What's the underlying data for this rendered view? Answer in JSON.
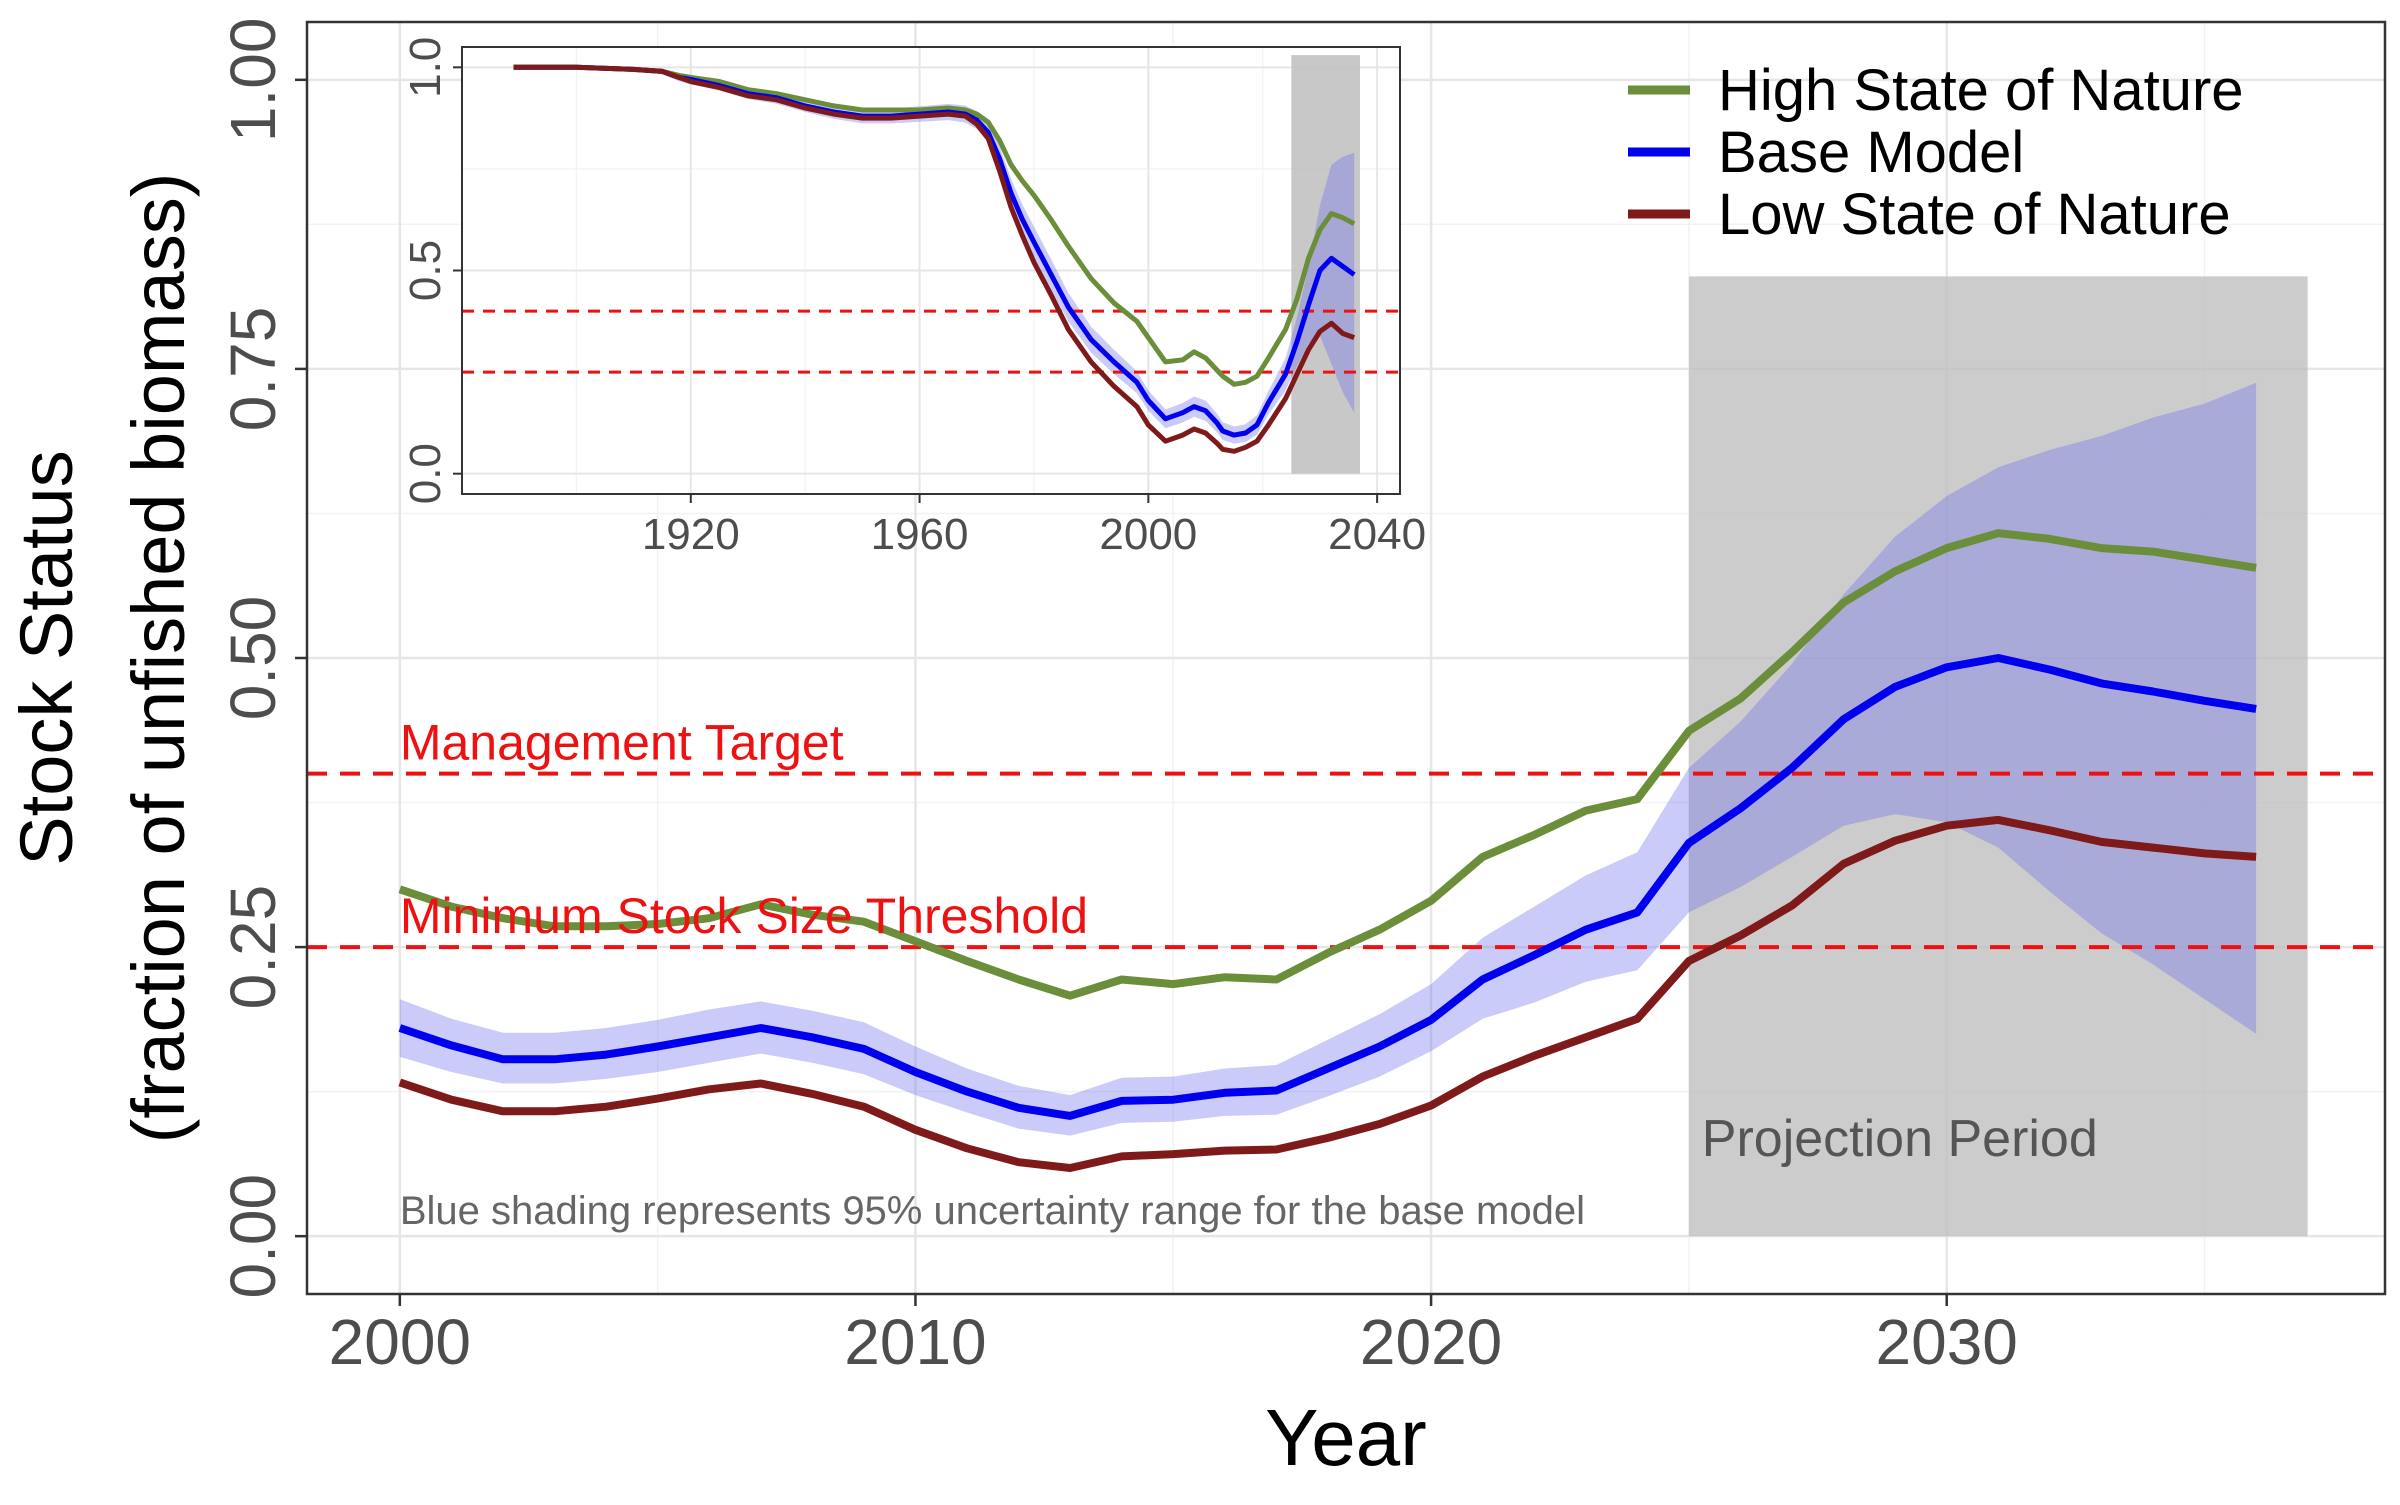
{
  "chart_data": [
    {
      "type": "line",
      "xlabel": "Year",
      "ylabel_line1": "Stock Status",
      "ylabel_line2": "(fraction of unfished biomass)",
      "xlim": [
        1998.2,
        2038.5
      ],
      "ylim": [
        -0.05,
        1.05
      ],
      "x_ticks": [
        2000,
        2010,
        2020,
        2030
      ],
      "x_tick_labels": [
        "2000",
        "2010",
        "2020",
        "2030"
      ],
      "y_ticks": [
        0.0,
        0.25,
        0.5,
        0.75,
        1.0
      ],
      "y_tick_labels": [
        "0.00",
        "0.25",
        "0.50",
        "0.75",
        "1.00"
      ],
      "grid": true,
      "legend_position": "top-right",
      "colors": {
        "high": "#6B8E3A",
        "base": "#0000EE",
        "low": "#7F1A1A",
        "band": "#6B6BF0",
        "reference": "#EE1111",
        "projection": "#BEBEBE"
      },
      "x": [
        2000,
        2001,
        2002,
        2003,
        2004,
        2005,
        2006,
        2007,
        2008,
        2009,
        2010,
        2011,
        2012,
        2013,
        2014,
        2015,
        2016,
        2017,
        2018,
        2019,
        2020,
        2021,
        2022,
        2023,
        2024,
        2025,
        2026,
        2027,
        2028,
        2029,
        2030,
        2031,
        2032,
        2033,
        2034,
        2035,
        2036
      ],
      "series": [
        {
          "name": "High State of Nature",
          "key": "high",
          "values": [
            0.3,
            0.285,
            0.275,
            0.268,
            0.268,
            0.27,
            0.275,
            0.287,
            0.278,
            0.272,
            0.255,
            0.238,
            0.222,
            0.208,
            0.222,
            0.218,
            0.224,
            0.222,
            0.245,
            0.265,
            0.29,
            0.328,
            0.347,
            0.368,
            0.378,
            0.437,
            0.465,
            0.505,
            0.548,
            0.575,
            0.595,
            0.608,
            0.603,
            0.595,
            0.592,
            0.585,
            0.578
          ]
        },
        {
          "name": "Base Model",
          "key": "base",
          "values": [
            0.18,
            0.165,
            0.153,
            0.153,
            0.157,
            0.164,
            0.172,
            0.18,
            0.172,
            0.162,
            0.142,
            0.125,
            0.111,
            0.104,
            0.117,
            0.118,
            0.124,
            0.126,
            0.145,
            0.164,
            0.187,
            0.222,
            0.243,
            0.265,
            0.28,
            0.34,
            0.37,
            0.405,
            0.447,
            0.475,
            0.492,
            0.5,
            0.49,
            0.478,
            0.471,
            0.463,
            0.456
          ]
        },
        {
          "name": "Low State of Nature",
          "key": "low",
          "values": [
            0.133,
            0.118,
            0.108,
            0.108,
            0.112,
            0.119,
            0.127,
            0.132,
            0.123,
            0.112,
            0.092,
            0.076,
            0.064,
            0.059,
            0.069,
            0.071,
            0.074,
            0.075,
            0.085,
            0.097,
            0.113,
            0.138,
            0.156,
            0.172,
            0.188,
            0.238,
            0.26,
            0.286,
            0.322,
            0.342,
            0.355,
            0.36,
            0.351,
            0.341,
            0.336,
            0.331,
            0.328
          ]
        }
      ],
      "base_band": {
        "lower": [
          0.155,
          0.142,
          0.132,
          0.132,
          0.136,
          0.142,
          0.15,
          0.158,
          0.15,
          0.14,
          0.122,
          0.107,
          0.093,
          0.087,
          0.098,
          0.099,
          0.104,
          0.105,
          0.121,
          0.138,
          0.16,
          0.188,
          0.202,
          0.22,
          0.23,
          0.28,
          0.302,
          0.328,
          0.355,
          0.365,
          0.358,
          0.336,
          0.298,
          0.262,
          0.235,
          0.205,
          0.175
        ],
        "upper": [
          0.205,
          0.188,
          0.176,
          0.176,
          0.18,
          0.187,
          0.196,
          0.203,
          0.195,
          0.185,
          0.164,
          0.145,
          0.13,
          0.122,
          0.137,
          0.138,
          0.145,
          0.148,
          0.17,
          0.192,
          0.218,
          0.258,
          0.285,
          0.312,
          0.332,
          0.405,
          0.445,
          0.495,
          0.555,
          0.605,
          0.64,
          0.665,
          0.68,
          0.692,
          0.708,
          0.72,
          0.738
        ]
      },
      "reference_lines": [
        {
          "value": 0.4,
          "label": "Management Target"
        },
        {
          "value": 0.25,
          "label": "Minimum Stock Size Threshold"
        }
      ],
      "projection_period": {
        "x_start": 2025,
        "x_end": 2037,
        "y_top": 0.83,
        "label": "Projection Period"
      },
      "annotation": "Blue shading represents 95% uncertainty range for the base model"
    },
    {
      "type": "line",
      "role": "inset",
      "xlim": [
        1880,
        2044
      ],
      "ylim": [
        -0.05,
        1.05
      ],
      "x_ticks": [
        1920,
        1960,
        2000,
        2040
      ],
      "x_tick_labels": [
        "1920",
        "1960",
        "2000",
        "2040"
      ],
      "y_ticks": [
        0.0,
        0.5,
        1.0
      ],
      "y_tick_labels": [
        "0.0",
        "0.5",
        "1.0"
      ],
      "grid": true,
      "x": [
        1889,
        1900,
        1910,
        1915,
        1918,
        1920,
        1925,
        1930,
        1935,
        1940,
        1945,
        1950,
        1955,
        1960,
        1965,
        1968,
        1970,
        1972,
        1974,
        1976,
        1978,
        1980,
        1983,
        1986,
        1990,
        1994,
        1998,
        2000,
        2003,
        2006,
        2008,
        2010,
        2012,
        2013,
        2015,
        2017,
        2019,
        2021,
        2024,
        2026,
        2028,
        2030,
        2032,
        2034,
        2036
      ],
      "series": [
        {
          "key": "high",
          "values": [
            1.0,
            1.0,
            0.995,
            0.99,
            0.98,
            0.975,
            0.965,
            0.945,
            0.935,
            0.92,
            0.905,
            0.895,
            0.895,
            0.895,
            0.9,
            0.895,
            0.885,
            0.865,
            0.82,
            0.76,
            0.72,
            0.685,
            0.625,
            0.56,
            0.48,
            0.42,
            0.375,
            0.335,
            0.275,
            0.28,
            0.3,
            0.285,
            0.255,
            0.24,
            0.22,
            0.225,
            0.24,
            0.285,
            0.355,
            0.43,
            0.53,
            0.6,
            0.64,
            0.63,
            0.615
          ]
        },
        {
          "key": "base",
          "values": [
            1.0,
            1.0,
            0.995,
            0.99,
            0.975,
            0.97,
            0.955,
            0.935,
            0.925,
            0.905,
            0.89,
            0.88,
            0.88,
            0.885,
            0.89,
            0.885,
            0.87,
            0.84,
            0.775,
            0.69,
            0.625,
            0.57,
            0.49,
            0.41,
            0.33,
            0.275,
            0.225,
            0.18,
            0.135,
            0.15,
            0.165,
            0.155,
            0.125,
            0.105,
            0.095,
            0.1,
            0.12,
            0.175,
            0.245,
            0.325,
            0.415,
            0.5,
            0.53,
            0.51,
            0.49
          ]
        },
        {
          "key": "low",
          "values": [
            1.0,
            1.0,
            0.995,
            0.99,
            0.975,
            0.965,
            0.95,
            0.93,
            0.92,
            0.9,
            0.885,
            0.875,
            0.875,
            0.88,
            0.885,
            0.88,
            0.86,
            0.825,
            0.745,
            0.655,
            0.585,
            0.52,
            0.44,
            0.355,
            0.275,
            0.215,
            0.165,
            0.12,
            0.08,
            0.095,
            0.11,
            0.1,
            0.075,
            0.06,
            0.055,
            0.065,
            0.08,
            0.12,
            0.185,
            0.245,
            0.305,
            0.35,
            0.37,
            0.345,
            0.335
          ]
        }
      ],
      "base_band": {
        "lower": [
          1.0,
          1.0,
          0.99,
          0.983,
          0.965,
          0.958,
          0.943,
          0.922,
          0.91,
          0.89,
          0.873,
          0.862,
          0.862,
          0.866,
          0.87,
          0.864,
          0.848,
          0.815,
          0.745,
          0.655,
          0.588,
          0.532,
          0.452,
          0.375,
          0.298,
          0.245,
          0.198,
          0.155,
          0.112,
          0.126,
          0.14,
          0.13,
          0.102,
          0.083,
          0.074,
          0.078,
          0.096,
          0.146,
          0.205,
          0.265,
          0.32,
          0.34,
          0.27,
          0.2,
          0.15
        ],
        "upper": [
          1.0,
          1.0,
          1.0,
          0.997,
          0.985,
          0.982,
          0.967,
          0.948,
          0.94,
          0.92,
          0.907,
          0.898,
          0.898,
          0.904,
          0.91,
          0.906,
          0.892,
          0.865,
          0.805,
          0.725,
          0.662,
          0.608,
          0.528,
          0.445,
          0.362,
          0.305,
          0.252,
          0.205,
          0.158,
          0.174,
          0.19,
          0.18,
          0.148,
          0.127,
          0.116,
          0.122,
          0.144,
          0.204,
          0.285,
          0.385,
          0.51,
          0.66,
          0.76,
          0.78,
          0.79
        ]
      },
      "reference_lines": [
        {
          "value": 0.4
        },
        {
          "value": 0.25
        }
      ],
      "projection_period": {
        "x_start": 2025,
        "x_end": 2037,
        "y_top": 1.03
      }
    }
  ]
}
